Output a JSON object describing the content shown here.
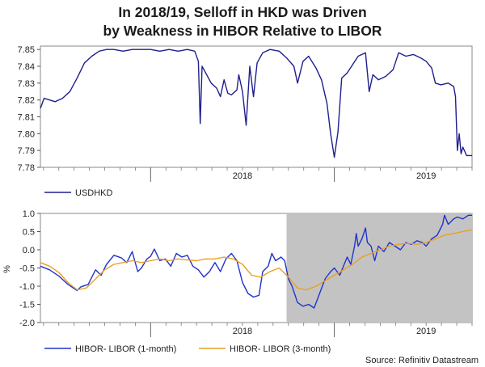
{
  "chart_data": [
    {
      "type": "line",
      "title": "In 2018/19, Selloff in HKD was Driven by Weakness in HIBOR Relative to LIBOR",
      "title_lines": [
        "In 2018/19, Selloff in HKD was Driven",
        "by Weakness in HIBOR Relative to LIBOR"
      ],
      "x_tick_labels": [
        "2018",
        "2019"
      ],
      "x_range": [
        2017.4,
        2019.75
      ],
      "ylim": [
        7.78,
        7.852
      ],
      "yticks": [
        "7.78",
        "7.79",
        "7.80",
        "7.81",
        "7.82",
        "7.83",
        "7.84",
        "7.85"
      ],
      "series": [
        {
          "name": "USDHKD",
          "color": "#1f1f8f",
          "points": [
            [
              2017.4,
              7.815
            ],
            [
              2017.42,
              7.821
            ],
            [
              2017.45,
              7.82
            ],
            [
              2017.48,
              7.819
            ],
            [
              2017.52,
              7.821
            ],
            [
              2017.56,
              7.825
            ],
            [
              2017.6,
              7.833
            ],
            [
              2017.64,
              7.842
            ],
            [
              2017.68,
              7.846
            ],
            [
              2017.72,
              7.849
            ],
            [
              2017.76,
              7.85
            ],
            [
              2017.8,
              7.85
            ],
            [
              2017.85,
              7.849
            ],
            [
              2017.9,
              7.85
            ],
            [
              2017.95,
              7.85
            ],
            [
              2018.0,
              7.85
            ],
            [
              2018.05,
              7.849
            ],
            [
              2018.1,
              7.85
            ],
            [
              2018.15,
              7.849
            ],
            [
              2018.2,
              7.85
            ],
            [
              2018.24,
              7.849
            ],
            [
              2018.26,
              7.843
            ],
            [
              2018.27,
              7.806
            ],
            [
              2018.28,
              7.84
            ],
            [
              2018.3,
              7.836
            ],
            [
              2018.33,
              7.83
            ],
            [
              2018.36,
              7.827
            ],
            [
              2018.38,
              7.822
            ],
            [
              2018.4,
              7.832
            ],
            [
              2018.42,
              7.824
            ],
            [
              2018.44,
              7.823
            ],
            [
              2018.47,
              7.826
            ],
            [
              2018.48,
              7.835
            ],
            [
              2018.5,
              7.825
            ],
            [
              2018.52,
              7.805
            ],
            [
              2018.54,
              7.84
            ],
            [
              2018.56,
              7.822
            ],
            [
              2018.58,
              7.842
            ],
            [
              2018.61,
              7.848
            ],
            [
              2018.65,
              7.85
            ],
            [
              2018.7,
              7.849
            ],
            [
              2018.74,
              7.845
            ],
            [
              2018.78,
              7.84
            ],
            [
              2018.8,
              7.83
            ],
            [
              2018.83,
              7.843
            ],
            [
              2018.86,
              7.846
            ],
            [
              2018.9,
              7.839
            ],
            [
              2018.93,
              7.832
            ],
            [
              2018.96,
              7.818
            ],
            [
              2018.98,
              7.8
            ],
            [
              2019.0,
              7.786
            ],
            [
              2019.02,
              7.801
            ],
            [
              2019.04,
              7.833
            ],
            [
              2019.07,
              7.836
            ],
            [
              2019.1,
              7.841
            ],
            [
              2019.13,
              7.846
            ],
            [
              2019.17,
              7.848
            ],
            [
              2019.19,
              7.825
            ],
            [
              2019.21,
              7.835
            ],
            [
              2019.24,
              7.832
            ],
            [
              2019.28,
              7.834
            ],
            [
              2019.32,
              7.838
            ],
            [
              2019.35,
              7.848
            ],
            [
              2019.39,
              7.846
            ],
            [
              2019.43,
              7.847
            ],
            [
              2019.47,
              7.845
            ],
            [
              2019.5,
              7.843
            ],
            [
              2019.53,
              7.839
            ],
            [
              2019.55,
              7.83
            ],
            [
              2019.58,
              7.829
            ],
            [
              2019.62,
              7.83
            ],
            [
              2019.65,
              7.828
            ],
            [
              2019.66,
              7.822
            ],
            [
              2019.67,
              7.79
            ],
            [
              2019.68,
              7.8
            ],
            [
              2019.69,
              7.788
            ],
            [
              2019.7,
              7.792
            ],
            [
              2019.72,
              7.787
            ],
            [
              2019.75,
              7.787
            ]
          ]
        }
      ]
    },
    {
      "type": "line",
      "ylabel": "%",
      "x_tick_labels": [
        "2018",
        "2019"
      ],
      "x_range": [
        2017.4,
        2019.75
      ],
      "ylim": [
        -2.0,
        1.0
      ],
      "yticks": [
        "-2.0",
        "-1.5",
        "-1.0",
        "-0.5",
        "0.0",
        "0.5",
        "1.0"
      ],
      "shaded_x_range": [
        2018.74,
        2019.75
      ],
      "series": [
        {
          "name": "HIBOR- LIBOR (1-month)",
          "color": "#2233cc",
          "points": [
            [
              2017.4,
              -0.45
            ],
            [
              2017.45,
              -0.55
            ],
            [
              2017.5,
              -0.72
            ],
            [
              2017.55,
              -0.95
            ],
            [
              2017.6,
              -1.12
            ],
            [
              2017.62,
              -1.02
            ],
            [
              2017.66,
              -0.95
            ],
            [
              2017.7,
              -0.55
            ],
            [
              2017.73,
              -0.7
            ],
            [
              2017.76,
              -0.4
            ],
            [
              2017.8,
              -0.15
            ],
            [
              2017.84,
              -0.22
            ],
            [
              2017.87,
              -0.35
            ],
            [
              2017.9,
              -0.05
            ],
            [
              2017.93,
              -0.6
            ],
            [
              2017.95,
              -0.5
            ],
            [
              2017.98,
              -0.25
            ],
            [
              2018.0,
              -0.18
            ],
            [
              2018.02,
              0.02
            ],
            [
              2018.05,
              -0.3
            ],
            [
              2018.08,
              -0.25
            ],
            [
              2018.11,
              -0.45
            ],
            [
              2018.14,
              -0.1
            ],
            [
              2018.17,
              -0.2
            ],
            [
              2018.2,
              -0.15
            ],
            [
              2018.23,
              -0.45
            ],
            [
              2018.26,
              -0.55
            ],
            [
              2018.29,
              -0.75
            ],
            [
              2018.32,
              -0.6
            ],
            [
              2018.35,
              -0.35
            ],
            [
              2018.38,
              -0.6
            ],
            [
              2018.41,
              -0.25
            ],
            [
              2018.44,
              -0.1
            ],
            [
              2018.47,
              -0.3
            ],
            [
              2018.5,
              -0.9
            ],
            [
              2018.53,
              -1.2
            ],
            [
              2018.56,
              -1.3
            ],
            [
              2018.59,
              -1.25
            ],
            [
              2018.61,
              -0.6
            ],
            [
              2018.64,
              -0.45
            ],
            [
              2018.66,
              -0.1
            ],
            [
              2018.68,
              -0.3
            ],
            [
              2018.71,
              -0.2
            ],
            [
              2018.73,
              -0.3
            ],
            [
              2018.75,
              -0.8
            ],
            [
              2018.77,
              -1.0
            ],
            [
              2018.8,
              -1.45
            ],
            [
              2018.83,
              -1.55
            ],
            [
              2018.86,
              -1.5
            ],
            [
              2018.89,
              -1.6
            ],
            [
              2018.92,
              -1.2
            ],
            [
              2018.95,
              -0.8
            ],
            [
              2018.98,
              -0.6
            ],
            [
              2019.0,
              -0.5
            ],
            [
              2019.03,
              -0.7
            ],
            [
              2019.05,
              -0.45
            ],
            [
              2019.07,
              -0.2
            ],
            [
              2019.09,
              -0.4
            ],
            [
              2019.11,
              0.1
            ],
            [
              2019.12,
              0.45
            ],
            [
              2019.13,
              0.1
            ],
            [
              2019.15,
              0.3
            ],
            [
              2019.17,
              0.6
            ],
            [
              2019.18,
              0.2
            ],
            [
              2019.2,
              0.1
            ],
            [
              2019.22,
              -0.3
            ],
            [
              2019.24,
              0.1
            ],
            [
              2019.27,
              -0.05
            ],
            [
              2019.3,
              0.2
            ],
            [
              2019.33,
              0.1
            ],
            [
              2019.36,
              0.0
            ],
            [
              2019.39,
              0.2
            ],
            [
              2019.42,
              0.15
            ],
            [
              2019.45,
              0.25
            ],
            [
              2019.48,
              0.2
            ],
            [
              2019.5,
              0.1
            ],
            [
              2019.53,
              0.3
            ],
            [
              2019.56,
              0.4
            ],
            [
              2019.59,
              0.7
            ],
            [
              2019.6,
              0.95
            ],
            [
              2019.62,
              0.7
            ],
            [
              2019.65,
              0.85
            ],
            [
              2019.67,
              0.9
            ],
            [
              2019.7,
              0.85
            ],
            [
              2019.73,
              0.95
            ],
            [
              2019.75,
              0.95
            ]
          ]
        },
        {
          "name": "HIBOR- LIBOR (3-month)",
          "color": "#e8a020",
          "points": [
            [
              2017.4,
              -0.35
            ],
            [
              2017.45,
              -0.45
            ],
            [
              2017.5,
              -0.62
            ],
            [
              2017.55,
              -0.9
            ],
            [
              2017.6,
              -1.1
            ],
            [
              2017.65,
              -1.05
            ],
            [
              2017.7,
              -0.8
            ],
            [
              2017.75,
              -0.55
            ],
            [
              2017.8,
              -0.4
            ],
            [
              2017.85,
              -0.35
            ],
            [
              2017.9,
              -0.3
            ],
            [
              2017.95,
              -0.35
            ],
            [
              2018.0,
              -0.3
            ],
            [
              2018.05,
              -0.25
            ],
            [
              2018.1,
              -0.3
            ],
            [
              2018.15,
              -0.25
            ],
            [
              2018.2,
              -0.28
            ],
            [
              2018.25,
              -0.3
            ],
            [
              2018.3,
              -0.25
            ],
            [
              2018.35,
              -0.25
            ],
            [
              2018.4,
              -0.2
            ],
            [
              2018.45,
              -0.25
            ],
            [
              2018.5,
              -0.4
            ],
            [
              2018.55,
              -0.7
            ],
            [
              2018.6,
              -0.75
            ],
            [
              2018.65,
              -0.6
            ],
            [
              2018.7,
              -0.5
            ],
            [
              2018.75,
              -0.75
            ],
            [
              2018.8,
              -1.05
            ],
            [
              2018.85,
              -1.1
            ],
            [
              2018.9,
              -1.0
            ],
            [
              2018.95,
              -0.85
            ],
            [
              2019.0,
              -0.7
            ],
            [
              2019.05,
              -0.55
            ],
            [
              2019.1,
              -0.4
            ],
            [
              2019.15,
              -0.2
            ],
            [
              2019.2,
              -0.1
            ],
            [
              2019.25,
              0.0
            ],
            [
              2019.3,
              0.1
            ],
            [
              2019.35,
              0.15
            ],
            [
              2019.4,
              0.18
            ],
            [
              2019.45,
              0.15
            ],
            [
              2019.5,
              0.2
            ],
            [
              2019.55,
              0.3
            ],
            [
              2019.6,
              0.4
            ],
            [
              2019.65,
              0.45
            ],
            [
              2019.7,
              0.5
            ],
            [
              2019.75,
              0.55
            ]
          ]
        }
      ]
    }
  ],
  "source": "Source: Refinitiv Datastream"
}
